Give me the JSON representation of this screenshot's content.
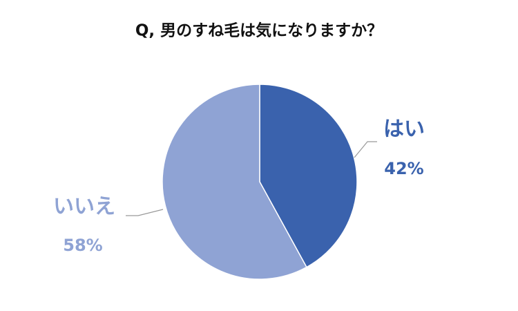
{
  "chart_data": {
    "type": "pie",
    "title": "Q, 男のすね毛は気になりますか？",
    "categories": [
      "はい",
      "いいえ"
    ],
    "values": [
      42,
      58
    ],
    "value_labels": [
      "42%",
      "58%"
    ],
    "colors": [
      "#3a62ad",
      "#8fa3d4"
    ]
  }
}
